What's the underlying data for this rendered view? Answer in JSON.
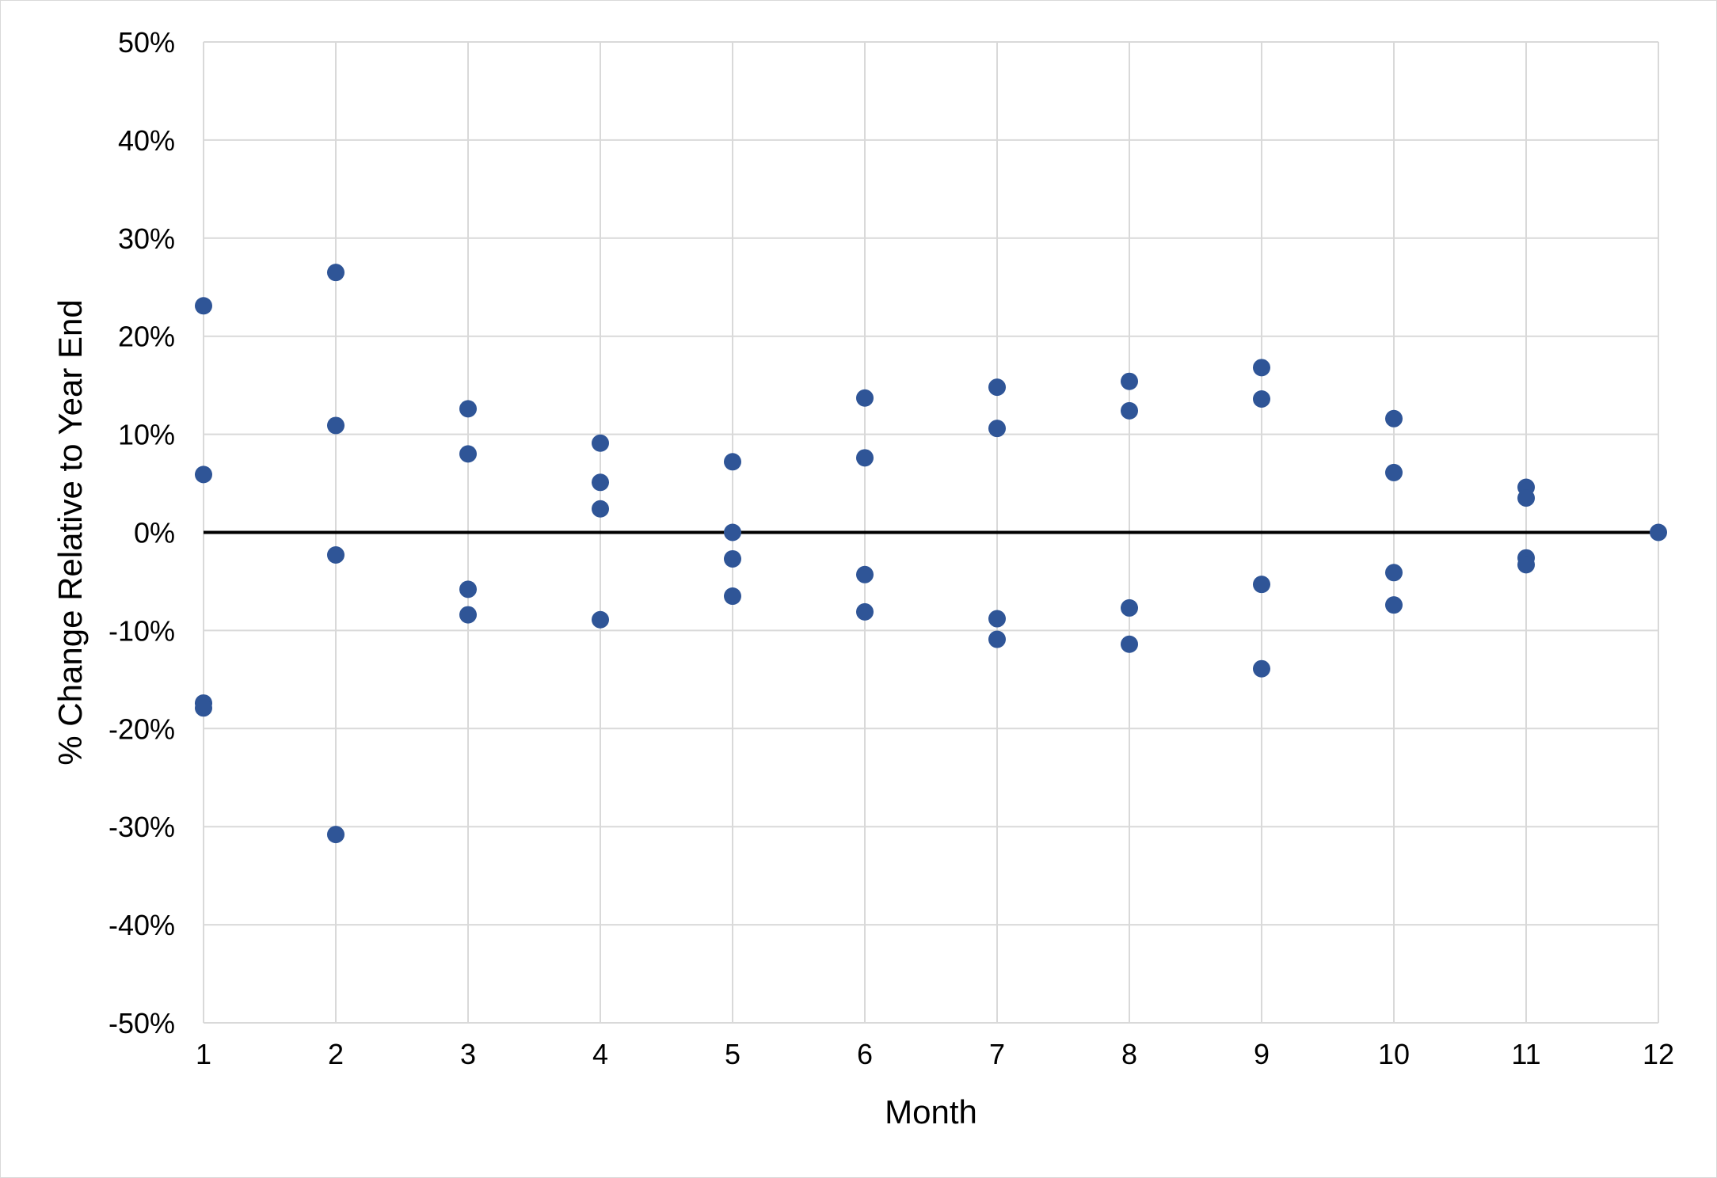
{
  "chart_data": {
    "type": "scatter",
    "title": "",
    "xlabel": "Month",
    "ylabel": "% Change Relative to Year End",
    "xlim": [
      1,
      12
    ],
    "ylim": [
      -0.5,
      0.5
    ],
    "x_ticks": [
      "1",
      "2",
      "3",
      "4",
      "5",
      "6",
      "7",
      "8",
      "9",
      "10",
      "11",
      "12"
    ],
    "y_ticks": [
      "50%",
      "40%",
      "30%",
      "20%",
      "10%",
      "0%",
      "-10%",
      "-20%",
      "-30%",
      "-40%",
      "-50%"
    ],
    "grid": true,
    "legend": "none",
    "zero_line": true,
    "colors": {
      "marker": "#2f5597",
      "grid": "#d9d9d9",
      "zero_line": "#000000"
    },
    "series": [
      {
        "points": [
          [
            1,
            0.231
          ],
          [
            1,
            0.059
          ],
          [
            1,
            -0.174
          ],
          [
            1,
            -0.179
          ],
          [
            2,
            0.265
          ],
          [
            2,
            0.109
          ],
          [
            2,
            -0.023
          ],
          [
            2,
            -0.308
          ],
          [
            3,
            0.126
          ],
          [
            3,
            0.08
          ],
          [
            3,
            -0.058
          ],
          [
            3,
            -0.084
          ],
          [
            4,
            0.091
          ],
          [
            4,
            0.051
          ],
          [
            4,
            0.024
          ],
          [
            4,
            -0.089
          ],
          [
            5,
            0.072
          ],
          [
            5,
            0.0
          ],
          [
            5,
            -0.027
          ],
          [
            5,
            -0.065
          ],
          [
            6,
            0.137
          ],
          [
            6,
            0.076
          ],
          [
            6,
            -0.043
          ],
          [
            6,
            -0.081
          ],
          [
            7,
            0.148
          ],
          [
            7,
            0.106
          ],
          [
            7,
            -0.088
          ],
          [
            7,
            -0.109
          ],
          [
            8,
            0.154
          ],
          [
            8,
            0.124
          ],
          [
            8,
            -0.077
          ],
          [
            8,
            -0.114
          ],
          [
            9,
            0.168
          ],
          [
            9,
            0.136
          ],
          [
            9,
            -0.053
          ],
          [
            9,
            -0.139
          ],
          [
            10,
            0.116
          ],
          [
            10,
            0.061
          ],
          [
            10,
            -0.041
          ],
          [
            10,
            -0.074
          ],
          [
            11,
            0.046
          ],
          [
            11,
            0.035
          ],
          [
            11,
            -0.026
          ],
          [
            11,
            -0.033
          ],
          [
            12,
            0.0
          ]
        ]
      }
    ]
  }
}
